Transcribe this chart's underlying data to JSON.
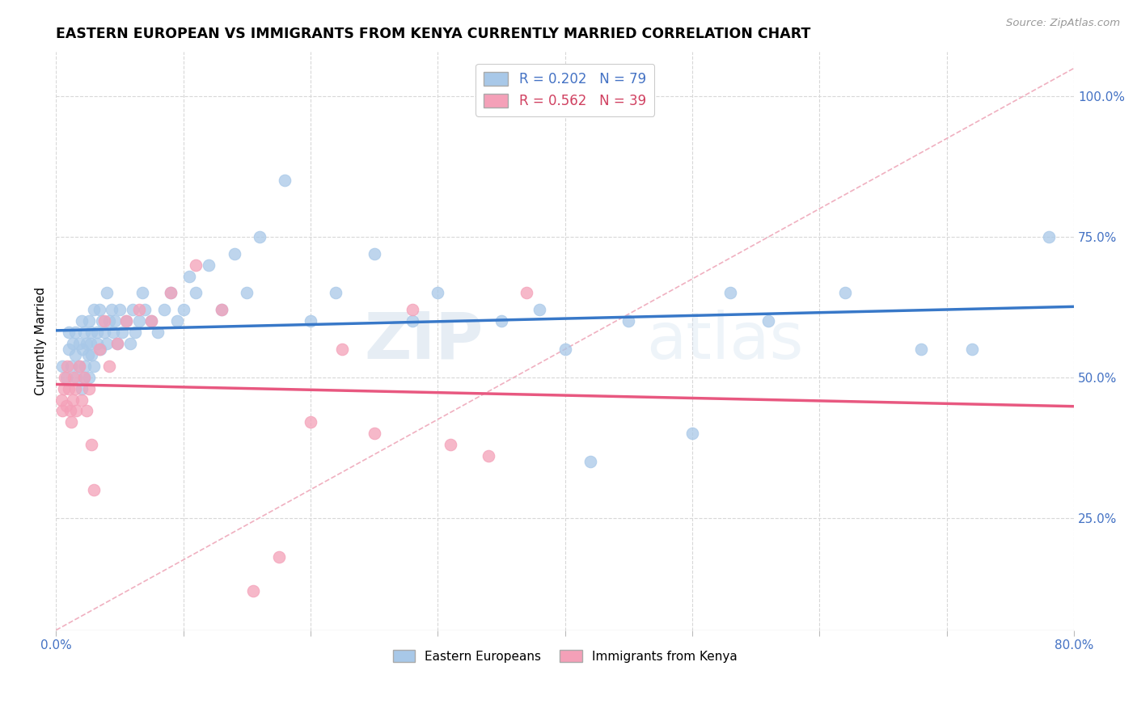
{
  "title": "EASTERN EUROPEAN VS IMMIGRANTS FROM KENYA CURRENTLY MARRIED CORRELATION CHART",
  "source": "Source: ZipAtlas.com",
  "ylabel": "Currently Married",
  "r_eastern": 0.202,
  "n_eastern": 79,
  "r_kenya": 0.562,
  "n_kenya": 39,
  "xlim": [
    0.0,
    0.8
  ],
  "ylim": [
    0.05,
    1.08
  ],
  "yticks_right": [
    0.25,
    0.5,
    0.75,
    1.0
  ],
  "ytick_labels_right": [
    "25.0%",
    "50.0%",
    "75.0%",
    "100.0%"
  ],
  "color_eastern": "#a8c8e8",
  "color_kenya": "#f4a0b8",
  "color_line_eastern": "#3878c8",
  "color_line_kenya": "#e85880",
  "color_diagonal": "#f0b0c0",
  "watermark_zip": "ZIP",
  "watermark_atlas": "atlas",
  "eastern_x": [
    0.005,
    0.008,
    0.01,
    0.01,
    0.012,
    0.013,
    0.015,
    0.015,
    0.016,
    0.018,
    0.018,
    0.02,
    0.02,
    0.021,
    0.022,
    0.022,
    0.023,
    0.024,
    0.025,
    0.026,
    0.026,
    0.027,
    0.028,
    0.028,
    0.03,
    0.03,
    0.032,
    0.032,
    0.034,
    0.035,
    0.036,
    0.038,
    0.04,
    0.04,
    0.042,
    0.044,
    0.045,
    0.046,
    0.048,
    0.05,
    0.052,
    0.055,
    0.058,
    0.06,
    0.062,
    0.065,
    0.068,
    0.07,
    0.075,
    0.08,
    0.085,
    0.09,
    0.095,
    0.1,
    0.105,
    0.11,
    0.12,
    0.13,
    0.14,
    0.15,
    0.16,
    0.18,
    0.2,
    0.22,
    0.25,
    0.28,
    0.3,
    0.35,
    0.38,
    0.4,
    0.42,
    0.45,
    0.5,
    0.53,
    0.56,
    0.62,
    0.68,
    0.72,
    0.78
  ],
  "eastern_y": [
    0.52,
    0.5,
    0.55,
    0.58,
    0.52,
    0.56,
    0.54,
    0.58,
    0.5,
    0.52,
    0.56,
    0.48,
    0.6,
    0.55,
    0.5,
    0.58,
    0.52,
    0.56,
    0.54,
    0.5,
    0.6,
    0.56,
    0.54,
    0.58,
    0.52,
    0.62,
    0.56,
    0.58,
    0.62,
    0.55,
    0.6,
    0.58,
    0.56,
    0.65,
    0.6,
    0.62,
    0.58,
    0.6,
    0.56,
    0.62,
    0.58,
    0.6,
    0.56,
    0.62,
    0.58,
    0.6,
    0.65,
    0.62,
    0.6,
    0.58,
    0.62,
    0.65,
    0.6,
    0.62,
    0.68,
    0.65,
    0.7,
    0.62,
    0.72,
    0.65,
    0.75,
    0.85,
    0.6,
    0.65,
    0.72,
    0.6,
    0.65,
    0.6,
    0.62,
    0.55,
    0.35,
    0.6,
    0.4,
    0.65,
    0.6,
    0.65,
    0.55,
    0.55,
    0.75
  ],
  "kenya_x": [
    0.004,
    0.005,
    0.006,
    0.007,
    0.008,
    0.009,
    0.01,
    0.011,
    0.012,
    0.013,
    0.014,
    0.015,
    0.016,
    0.018,
    0.02,
    0.022,
    0.024,
    0.026,
    0.028,
    0.03,
    0.034,
    0.038,
    0.042,
    0.048,
    0.055,
    0.065,
    0.075,
    0.09,
    0.11,
    0.13,
    0.155,
    0.175,
    0.2,
    0.225,
    0.25,
    0.28,
    0.31,
    0.34,
    0.37
  ],
  "kenya_y": [
    0.46,
    0.44,
    0.48,
    0.5,
    0.45,
    0.52,
    0.48,
    0.44,
    0.42,
    0.46,
    0.5,
    0.48,
    0.44,
    0.52,
    0.46,
    0.5,
    0.44,
    0.48,
    0.38,
    0.3,
    0.55,
    0.6,
    0.52,
    0.56,
    0.6,
    0.62,
    0.6,
    0.65,
    0.7,
    0.62,
    0.12,
    0.18,
    0.42,
    0.55,
    0.4,
    0.62,
    0.38,
    0.36,
    0.65
  ]
}
